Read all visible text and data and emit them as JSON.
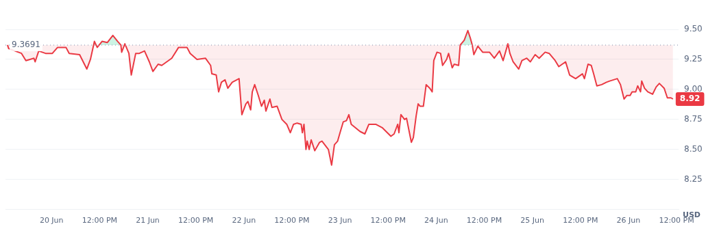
{
  "chart_data": {
    "type": "line",
    "ylabel": "USD",
    "x": [
      "--06-19T13:00",
      "--06-19T13:18",
      "--06-19T16:30",
      "--06-19T17:36",
      "--06-19T19:36",
      "--06-19T19:54",
      "--06-19T20:48",
      "--06-19T22:30",
      "--06-20T00:12",
      "--06-20T01:30",
      "--06-20T03:36",
      "--06-20T04:24",
      "--06-20T07:00",
      "--06-20T08:48",
      "--06-20T09:42",
      "--06-20T10:42",
      "--06-20T11:24",
      "--06-20T12:36",
      "--06-20T13:54",
      "--06-20T15:18",
      "--06-20T16:30",
      "--06-20T17:18",
      "--06-20T17:30",
      "--06-20T18:18",
      "--06-20T19:18",
      "--06-20T19:54",
      "--06-20T21:00",
      "--06-20T21:54",
      "--06-20T23:12",
      "--06-21T00:24",
      "--06-21T01:18",
      "--06-21T02:36",
      "--06-21T03:30",
      "--06-21T06:00",
      "--06-21T07:42",
      "--06-21T09:48",
      "--06-21T10:36",
      "--06-21T12:18",
      "--06-21T14:24",
      "--06-21T15:42",
      "--06-21T16:00",
      "--06-21T17:06",
      "--06-21T17:42",
      "--06-21T18:24",
      "--06-21T19:18",
      "--06-21T20:00",
      "--06-21T21:06",
      "--06-21T22:48",
      "--06-21T23:30",
      "--06-22T00:30",
      "--06-22T01:00",
      "--06-22T01:42",
      "--06-22T02:06",
      "--06-22T02:42",
      "--06-22T03:36",
      "--06-22T04:24",
      "--06-22T05:06",
      "--06-22T05:30",
      "--06-22T06:30",
      "--06-22T07:00",
      "--06-22T08:18",
      "--06-22T09:30",
      "--06-22T10:42",
      "--06-22T11:36",
      "--06-22T12:24",
      "--06-22T13:18",
      "--06-22T14:18",
      "--06-22T14:36",
      "--06-22T15:00",
      "--06-22T15:30",
      "--06-22T15:48",
      "--06-22T16:18",
      "--06-22T16:48",
      "--06-22T17:42",
      "--06-22T18:54",
      "--06-22T19:30",
      "--06-22T21:06",
      "--06-22T21:54",
      "--06-22T22:36",
      "--06-22T23:24",
      "--06-23T00:00",
      "--06-23T00:48",
      "--06-23T01:36",
      "--06-23T02:12",
      "--06-23T02:48",
      "--06-23T05:00",
      "--06-23T06:12",
      "--06-23T07:12",
      "--06-23T08:54",
      "--06-23T10:36",
      "--06-23T12:42",
      "--06-23T13:30",
      "--06-23T14:24",
      "--06-23T14:42",
      "--06-23T15:12",
      "--06-23T16:06",
      "--06-23T16:36",
      "--06-23T17:48",
      "--06-23T18:18",
      "--06-23T19:00",
      "--06-23T19:30",
      "--06-23T20:00",
      "--06-23T20:48",
      "--06-23T21:30",
      "--06-23T22:24",
      "--06-23T23:00",
      "--06-23T23:24",
      "--06-24T00:12",
      "--06-24T01:06",
      "--06-24T01:36",
      "--06-24T02:36",
      "--06-24T03:06",
      "--06-24T04:00",
      "--06-24T04:30",
      "--06-24T05:36",
      "--06-24T06:00",
      "--06-24T07:00",
      "--06-24T07:54",
      "--06-24T08:30",
      "--06-24T09:00",
      "--06-24T09:24",
      "--06-24T10:24",
      "--06-24T11:36",
      "--06-24T13:18",
      "--06-24T14:30",
      "--06-24T15:48",
      "--06-24T16:42",
      "--06-24T17:54",
      "--06-24T18:24",
      "--06-24T19:12",
      "--06-24T20:36",
      "--06-24T21:24",
      "--06-24T22:36",
      "--06-24T23:30",
      "--06-25T00:42",
      "--06-25T01:42",
      "--06-25T03:12",
      "--06-25T04:12",
      "--06-25T05:42",
      "--06-25T06:36",
      "--06-25T08:18",
      "--06-25T09:18",
      "--06-25T10:48",
      "--06-25T12:30",
      "--06-25T13:00",
      "--06-25T13:54",
      "--06-25T14:42",
      "--06-25T15:18",
      "--06-25T16:06",
      "--06-25T17:18",
      "--06-25T18:30",
      "--06-25T19:18",
      "--06-25T21:12",
      "--06-25T22:00",
      "--06-25T22:54",
      "--06-25T23:36",
      "--06-26T00:24",
      "--06-26T00:54",
      "--06-26T01:48",
      "--06-26T02:18",
      "--06-26T03:00",
      "--06-26T03:18",
      "--06-26T04:00",
      "--06-26T04:48",
      "--06-26T06:00",
      "--06-26T06:54",
      "--06-26T07:42",
      "--06-26T08:54",
      "--06-26T09:42",
      "--06-26T10:36",
      "--06-26T11:06"
    ],
    "series": [
      {
        "color": "#ea3943",
        "values": [
          9.37,
          9.34,
          9.3,
          9.24,
          9.26,
          9.23,
          9.32,
          9.3,
          9.3,
          9.35,
          9.35,
          9.3,
          9.29,
          9.17,
          9.25,
          9.4,
          9.35,
          9.4,
          9.39,
          9.45,
          9.4,
          9.37,
          9.31,
          9.38,
          9.3,
          9.12,
          9.3,
          9.3,
          9.32,
          9.23,
          9.15,
          9.21,
          9.2,
          9.26,
          9.35,
          9.35,
          9.3,
          9.25,
          9.26,
          9.2,
          9.13,
          9.12,
          8.98,
          9.06,
          9.08,
          9.01,
          9.06,
          9.09,
          8.79,
          8.88,
          8.9,
          8.83,
          8.98,
          9.04,
          8.95,
          8.86,
          8.91,
          8.82,
          8.92,
          8.85,
          8.86,
          8.75,
          8.71,
          8.64,
          8.71,
          8.72,
          8.71,
          8.64,
          8.71,
          8.5,
          8.57,
          8.5,
          8.58,
          8.49,
          8.56,
          8.57,
          8.5,
          8.37,
          8.54,
          8.57,
          8.64,
          8.73,
          8.74,
          8.79,
          8.71,
          8.65,
          8.63,
          8.71,
          8.71,
          8.68,
          8.61,
          8.63,
          8.71,
          8.64,
          8.79,
          8.75,
          8.76,
          8.56,
          8.6,
          8.78,
          8.88,
          8.86,
          8.86,
          9.04,
          9.01,
          8.98,
          9.24,
          9.31,
          9.3,
          9.2,
          9.25,
          9.3,
          9.18,
          9.21,
          9.2,
          9.37,
          9.41,
          9.49,
          9.43,
          9.37,
          9.29,
          9.36,
          9.31,
          9.31,
          9.26,
          9.32,
          9.24,
          9.38,
          9.3,
          9.23,
          9.17,
          9.24,
          9.26,
          9.23,
          9.29,
          9.26,
          9.31,
          9.3,
          9.24,
          9.19,
          9.23,
          9.12,
          9.09,
          9.13,
          9.09,
          9.21,
          9.2,
          9.13,
          9.03,
          9.04,
          9.06,
          9.07,
          9.09,
          9.04,
          8.92,
          8.95,
          8.95,
          8.98,
          8.98,
          9.03,
          8.98,
          9.07,
          9.01,
          8.98,
          8.96,
          9.02,
          9.05,
          9.01,
          8.93,
          8.93,
          8.92
        ]
      }
    ],
    "xlim": [
      "--06-19T12:30",
      "--06-26T12:30"
    ],
    "xticks": [
      {
        "value": "--06-20",
        "label": "20 Jun"
      },
      {
        "value": "--06-20T12:00",
        "label": "12:00 PM"
      },
      {
        "value": "--06-21",
        "label": "21 Jun"
      },
      {
        "value": "--06-21T12:00",
        "label": "12:00 PM"
      },
      {
        "value": "--06-22",
        "label": "22 Jun"
      },
      {
        "value": "--06-22T12:00",
        "label": "12:00 PM"
      },
      {
        "value": "--06-23",
        "label": "23 Jun"
      },
      {
        "value": "--06-23T12:00",
        "label": "12:00 PM"
      },
      {
        "value": "--06-24",
        "label": "24 Jun"
      },
      {
        "value": "--06-24T12:00",
        "label": "12:00 PM"
      },
      {
        "value": "--06-25",
        "label": "25 Jun"
      },
      {
        "value": "--06-25T12:00",
        "label": "12:00 PM"
      },
      {
        "value": "--06-26",
        "label": "26 Jun"
      },
      {
        "value": "--06-26T12:00",
        "label": "12:00 PM"
      }
    ],
    "ylim": [
      8.0,
      9.5
    ],
    "yticks": [
      {
        "value": 8.25,
        "label": "8.25"
      },
      {
        "value": 8.5,
        "label": "8.50"
      },
      {
        "value": 8.75,
        "label": "8.75"
      },
      {
        "value": 9.0,
        "label": "9.00"
      },
      {
        "value": 9.25,
        "label": "9.25"
      },
      {
        "value": 9.5,
        "label": "9.50"
      }
    ],
    "ref_lines": [
      {
        "axis": "y",
        "value": 9.3691,
        "label": "9.3691",
        "color": "#a6b0c3",
        "line_style": "dotted"
      }
    ],
    "annotations": [
      {
        "text": "8.92",
        "x": "--06-26T11:06",
        "y": 8.92
      }
    ],
    "grid": "y",
    "legend": false,
    "marker": "none",
    "line_style": "solid"
  }
}
